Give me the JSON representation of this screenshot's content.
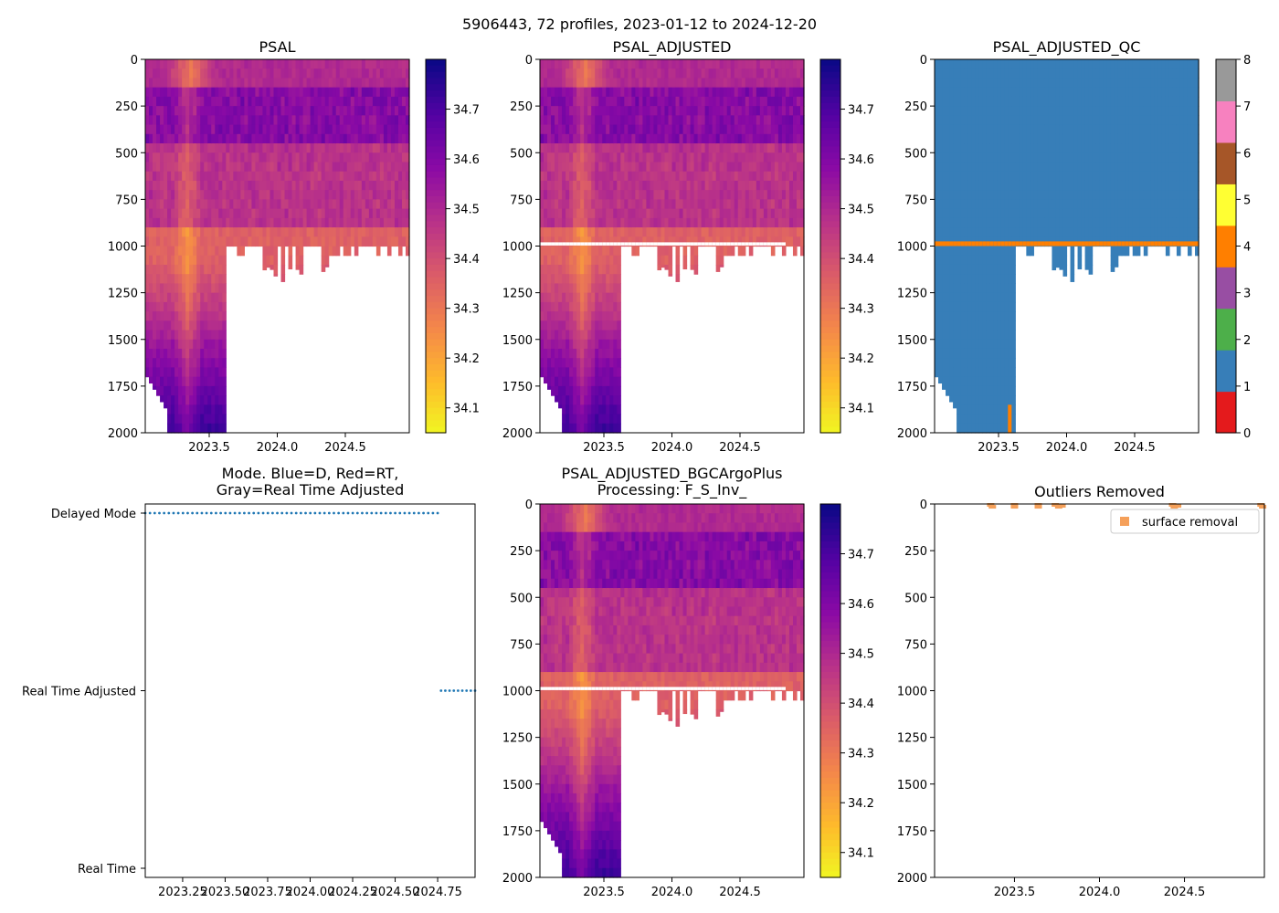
{
  "figure": {
    "suptitle": "5906443, 72 profiles, 2023-01-12 to 2024-12-20",
    "colors": {
      "white": "#ffffff",
      "gap": "#ffffff",
      "mode_dots": "#1f77b4",
      "outlier": "#f5a05a"
    }
  },
  "chart_data": [
    {
      "id": "psal",
      "type": "heatmap",
      "title": "PSAL",
      "x_range": [
        2023.03,
        2024.97
      ],
      "y_range": [
        2000,
        0
      ],
      "xticks": [
        "2023.5",
        "2024.0",
        "2024.5"
      ],
      "xtick_values": [
        2023.5,
        2024.0,
        2024.5
      ],
      "yticks": [
        "0",
        "250",
        "500",
        "750",
        "1000",
        "1250",
        "1500",
        "1750",
        "2000"
      ],
      "ytick_values": [
        0,
        250,
        500,
        750,
        1000,
        1250,
        1500,
        1750,
        2000
      ],
      "colorbar": {
        "colormap": "plasma_r",
        "range": [
          34.05,
          34.8
        ],
        "ticks": [
          "34.1",
          "34.2",
          "34.3",
          "34.4",
          "34.5",
          "34.6",
          "34.7"
        ],
        "tick_values": [
          34.1,
          34.2,
          34.3,
          34.4,
          34.5,
          34.6,
          34.7
        ]
      },
      "profiles": 72,
      "deep_profile_count": 22,
      "shallow_depth": 1000,
      "gap_band": null
    },
    {
      "id": "psal_adjusted",
      "type": "heatmap",
      "title": "PSAL_ADJUSTED",
      "x_range": [
        2023.03,
        2024.97
      ],
      "y_range": [
        2000,
        0
      ],
      "xticks": [
        "2023.5",
        "2024.0",
        "2024.5"
      ],
      "xtick_values": [
        2023.5,
        2024.0,
        2024.5
      ],
      "yticks": [
        "0",
        "250",
        "500",
        "750",
        "1000",
        "1250",
        "1500",
        "1750",
        "2000"
      ],
      "ytick_values": [
        0,
        250,
        500,
        750,
        1000,
        1250,
        1500,
        1750,
        2000
      ],
      "colorbar": {
        "colormap": "plasma_r",
        "range": [
          34.05,
          34.8
        ],
        "ticks": [
          "34.1",
          "34.2",
          "34.3",
          "34.4",
          "34.5",
          "34.6",
          "34.7"
        ],
        "tick_values": [
          34.1,
          34.2,
          34.3,
          34.4,
          34.5,
          34.6,
          34.7
        ]
      },
      "profiles": 72,
      "deep_profile_count": 22,
      "shallow_depth": 1000,
      "gap_band": [
        975,
        1000
      ]
    },
    {
      "id": "psal_adjusted_qc",
      "type": "heatmap",
      "title": "PSAL_ADJUSTED_QC",
      "x_range": [
        2023.03,
        2024.97
      ],
      "y_range": [
        2000,
        0
      ],
      "xticks": [
        "2023.5",
        "2024.0",
        "2024.5"
      ],
      "xtick_values": [
        2023.5,
        2024.0,
        2024.5
      ],
      "yticks": [
        "0",
        "250",
        "500",
        "750",
        "1000",
        "1250",
        "1500",
        "1750",
        "2000"
      ],
      "ytick_values": [
        0,
        250,
        500,
        750,
        1000,
        1250,
        1500,
        1750,
        2000
      ],
      "qc_colorbar": {
        "range": [
          0,
          8
        ],
        "ticks": [
          "0",
          "1",
          "2",
          "3",
          "4",
          "5",
          "6",
          "7",
          "8"
        ],
        "tick_values": [
          0,
          1,
          2,
          3,
          4,
          5,
          6,
          7,
          8
        ],
        "colors": [
          "#e41a1c",
          "#377eb8",
          "#4daf4a",
          "#984ea3",
          "#ff7f00",
          "#ffff33",
          "#a65628",
          "#f781bf",
          "#999999"
        ]
      },
      "dominant_flag": 1,
      "band_flag": 4,
      "band_depth": [
        975,
        1000
      ],
      "profiles": 72,
      "deep_profile_count": 22,
      "shallow_depth": 1000
    },
    {
      "id": "mode",
      "type": "scatter",
      "title": "Mode. Blue=D, Red=RT,\nGray=Real Time Adjusted",
      "title_lines": [
        "Mode. Blue=D, Red=RT,",
        "Gray=Real Time Adjusted"
      ],
      "x_range": [
        2023.03,
        2024.97
      ],
      "xticks": [
        "2023.25",
        "2023.50",
        "2023.75",
        "2024.00",
        "2024.25",
        "2024.50",
        "2024.75"
      ],
      "xtick_values": [
        2023.25,
        2023.5,
        2023.75,
        2024.0,
        2024.25,
        2024.5,
        2024.75
      ],
      "ycategories": [
        "Real Time",
        "Real Time Adjusted",
        "Delayed Mode"
      ],
      "ycategory_values": [
        0,
        1,
        2
      ],
      "series": [
        {
          "name": "Delayed Mode",
          "y": 2,
          "x_from": 2023.03,
          "x_to": 2024.75,
          "count": 63
        },
        {
          "name": "Real Time Adjusted",
          "y": 1,
          "x_from": 2024.77,
          "x_to": 2024.97,
          "count": 9
        }
      ]
    },
    {
      "id": "psal_adjusted_bgcargoplus",
      "type": "heatmap",
      "title": "PSAL_ADJUSTED_BGCArgoPlus\nProcessing: F_S_Inv_",
      "title_lines": [
        "PSAL_ADJUSTED_BGCArgoPlus",
        "Processing: F_S_Inv_"
      ],
      "x_range": [
        2023.03,
        2024.97
      ],
      "y_range": [
        2000,
        0
      ],
      "xticks": [
        "2023.5",
        "2024.0",
        "2024.5"
      ],
      "xtick_values": [
        2023.5,
        2024.0,
        2024.5
      ],
      "yticks": [
        "0",
        "250",
        "500",
        "750",
        "1000",
        "1250",
        "1500",
        "1750",
        "2000"
      ],
      "ytick_values": [
        0,
        250,
        500,
        750,
        1000,
        1250,
        1500,
        1750,
        2000
      ],
      "colorbar": {
        "colormap": "plasma_r",
        "range": [
          34.05,
          34.8
        ],
        "ticks": [
          "34.1",
          "34.2",
          "34.3",
          "34.4",
          "34.5",
          "34.6",
          "34.7"
        ],
        "tick_values": [
          34.1,
          34.2,
          34.3,
          34.4,
          34.5,
          34.6,
          34.7
        ]
      },
      "profiles": 72,
      "deep_profile_count": 22,
      "shallow_depth": 1000,
      "gap_band": [
        975,
        1000
      ]
    },
    {
      "id": "outliers",
      "type": "scatter",
      "title": "Outliers Removed",
      "x_range": [
        2023.03,
        2024.97
      ],
      "y_range": [
        2000,
        0
      ],
      "xticks": [
        "2023.5",
        "2024.0",
        "2024.5"
      ],
      "xtick_values": [
        2023.5,
        2024.0,
        2024.5
      ],
      "yticks": [
        "0",
        "250",
        "500",
        "750",
        "1000",
        "1250",
        "1500",
        "1750",
        "2000"
      ],
      "ytick_values": [
        0,
        250,
        500,
        750,
        1000,
        1250,
        1500,
        1750,
        2000
      ],
      "legend": {
        "label": "surface removal",
        "location": "upper right"
      },
      "points": [
        {
          "x": 2023.36,
          "y": 5
        },
        {
          "x": 2023.37,
          "y": 15
        },
        {
          "x": 2023.5,
          "y": 5
        },
        {
          "x": 2023.5,
          "y": 15
        },
        {
          "x": 2023.64,
          "y": 5
        },
        {
          "x": 2023.64,
          "y": 15
        },
        {
          "x": 2023.74,
          "y": 5
        },
        {
          "x": 2023.76,
          "y": 15
        },
        {
          "x": 2023.78,
          "y": 10
        },
        {
          "x": 2024.43,
          "y": 5
        },
        {
          "x": 2024.44,
          "y": 15
        },
        {
          "x": 2024.46,
          "y": 10
        },
        {
          "x": 2024.95,
          "y": 5
        },
        {
          "x": 2024.96,
          "y": 15
        }
      ]
    }
  ]
}
